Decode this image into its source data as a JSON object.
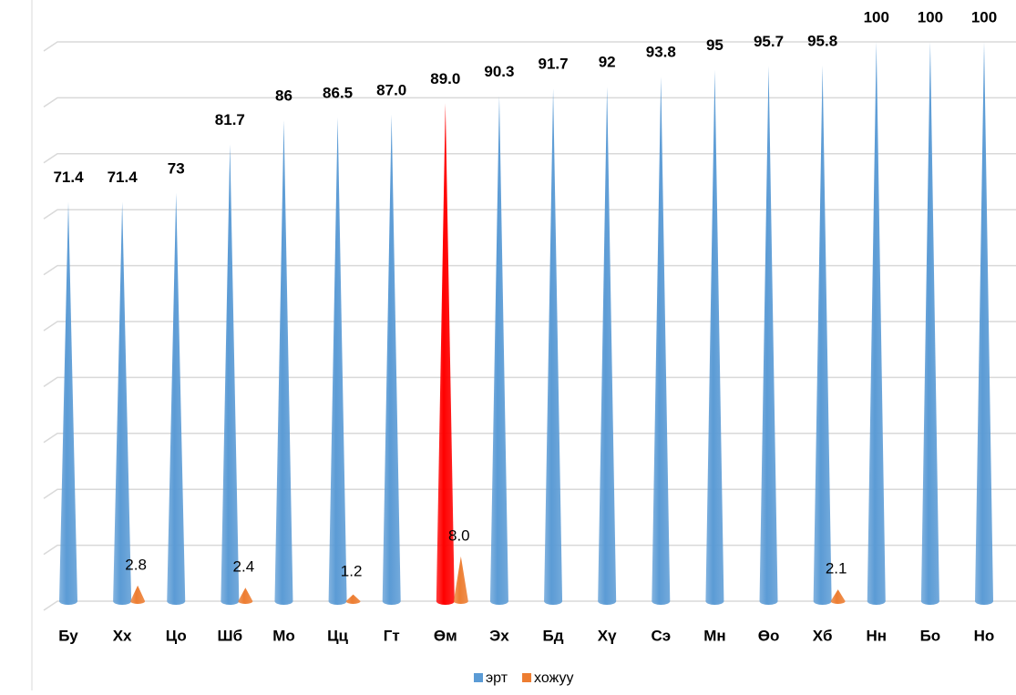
{
  "chart_data": {
    "type": "cone",
    "categories": [
      "Бу",
      "Хх",
      "Цо",
      "Шб",
      "Мо",
      "Цц",
      "Гт",
      "Өм",
      "Эх",
      "Бд",
      "Хү",
      "Сэ",
      "Мн",
      "Өо",
      "Хб",
      "Нн",
      "Бо",
      "Но"
    ],
    "series": [
      {
        "name": "эрт",
        "color": "#5b9bd5",
        "colors": [
          "#5b9bd5",
          "#5b9bd5",
          "#5b9bd5",
          "#5b9bd5",
          "#5b9bd5",
          "#5b9bd5",
          "#5b9bd5",
          "#ff0000",
          "#5b9bd5",
          "#5b9bd5",
          "#5b9bd5",
          "#5b9bd5",
          "#5b9bd5",
          "#5b9bd5",
          "#5b9bd5",
          "#5b9bd5",
          "#5b9bd5",
          "#5b9bd5"
        ],
        "values": [
          71.4,
          71.4,
          73,
          81.7,
          86,
          86.5,
          87.0,
          89.0,
          90.3,
          91.7,
          92,
          93.8,
          95,
          95.7,
          95.8,
          100,
          100,
          100
        ],
        "value_labels": [
          "71.4",
          "71.4",
          "73",
          "81.7",
          "86",
          "86.5",
          "87.0",
          "89.0",
          "90.3",
          "91.7",
          "92",
          "93.8",
          "95",
          "95.7",
          "95.8",
          "100",
          "100",
          "100"
        ]
      },
      {
        "name": "хожуу",
        "color": "#ed7d31",
        "values": [
          null,
          2.8,
          null,
          2.4,
          null,
          1.2,
          null,
          8.0,
          null,
          null,
          null,
          null,
          null,
          null,
          2.1,
          null,
          null,
          null
        ],
        "value_labels": [
          null,
          "2.8",
          null,
          "2.4",
          null,
          "1.2",
          null,
          "8.0",
          null,
          null,
          null,
          null,
          null,
          null,
          "2.1",
          null,
          null,
          null
        ]
      }
    ],
    "ylim": [
      0,
      100
    ],
    "yticks": [
      0,
      10,
      20,
      30,
      40,
      50,
      60,
      70,
      80,
      90,
      100
    ],
    "grid": true,
    "legend": "bottom"
  }
}
